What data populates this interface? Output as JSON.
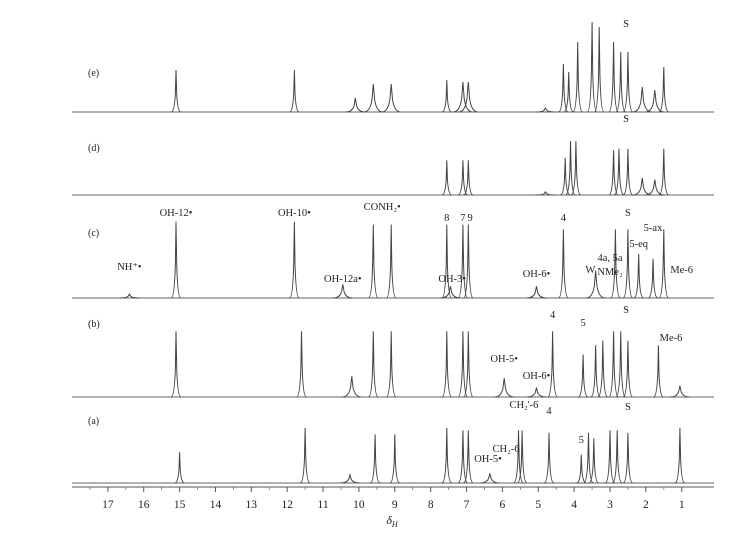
{
  "chart_data": {
    "type": "line",
    "title": "",
    "xlabel": "δH",
    "x_axis": {
      "label_main": "δ",
      "label_sub": "H",
      "reversed": true,
      "range": [
        18.0,
        0.1
      ],
      "ticks": [
        "17",
        "16",
        "15",
        "14",
        "13",
        "12",
        "11",
        "10",
        "9",
        "8",
        "7",
        "6",
        "5",
        "4",
        "3",
        "2",
        "1"
      ]
    },
    "series": [
      {
        "name": "(e)",
        "peaks": [
          {
            "x": 15.1,
            "h": 42
          },
          {
            "x": 11.8,
            "h": 42
          },
          {
            "x": 10.1,
            "h": 14
          },
          {
            "x": 9.6,
            "h": 28
          },
          {
            "x": 9.1,
            "h": 28
          },
          {
            "x": 7.55,
            "h": 32
          },
          {
            "x": 7.1,
            "h": 30
          },
          {
            "x": 6.95,
            "h": 30
          },
          {
            "x": 4.8,
            "h": 4
          },
          {
            "x": 4.3,
            "h": 48
          },
          {
            "x": 4.15,
            "h": 40
          },
          {
            "x": 3.9,
            "h": 70
          },
          {
            "x": 3.5,
            "h": 90
          },
          {
            "x": 3.3,
            "h": 85
          },
          {
            "x": 2.9,
            "h": 70
          },
          {
            "x": 2.7,
            "h": 60
          },
          {
            "x": 2.5,
            "h": 60
          },
          {
            "x": 2.1,
            "h": 25
          },
          {
            "x": 1.75,
            "h": 22
          },
          {
            "x": 1.5,
            "h": 45
          }
        ],
        "labels": [
          {
            "text": "S",
            "x": 2.55
          }
        ]
      },
      {
        "name": "(d)",
        "peaks": [
          {
            "x": 7.55,
            "h": 45
          },
          {
            "x": 7.1,
            "h": 45
          },
          {
            "x": 6.95,
            "h": 45
          },
          {
            "x": 4.8,
            "h": 4
          },
          {
            "x": 4.25,
            "h": 48
          },
          {
            "x": 4.1,
            "h": 70
          },
          {
            "x": 3.95,
            "h": 70
          },
          {
            "x": 2.9,
            "h": 58
          },
          {
            "x": 2.75,
            "h": 60
          },
          {
            "x": 2.5,
            "h": 60
          },
          {
            "x": 2.1,
            "h": 22
          },
          {
            "x": 1.75,
            "h": 20
          },
          {
            "x": 1.5,
            "h": 60
          }
        ],
        "labels": [
          {
            "text": "S",
            "x": 2.55
          }
        ]
      },
      {
        "name": "(c)",
        "peaks": [
          {
            "x": 16.4,
            "h": 4
          },
          {
            "x": 15.1,
            "h": 78
          },
          {
            "x": 11.8,
            "h": 78
          },
          {
            "x": 10.45,
            "h": 14
          },
          {
            "x": 9.6,
            "h": 75
          },
          {
            "x": 9.1,
            "h": 75
          },
          {
            "x": 7.55,
            "h": 75
          },
          {
            "x": 7.45,
            "h": 12
          },
          {
            "x": 7.1,
            "h": 75
          },
          {
            "x": 6.95,
            "h": 75
          },
          {
            "x": 5.05,
            "h": 12
          },
          {
            "x": 4.3,
            "h": 70
          },
          {
            "x": 3.4,
            "h": 28
          },
          {
            "x": 2.85,
            "h": 70
          },
          {
            "x": 2.5,
            "h": 70
          },
          {
            "x": 2.2,
            "h": 45
          },
          {
            "x": 1.8,
            "h": 40
          },
          {
            "x": 1.5,
            "h": 70
          }
        ],
        "labels": [
          {
            "text": "NH⁺•",
            "x": 16.4
          },
          {
            "text": "OH-12•",
            "x": 15.1
          },
          {
            "text": "OH-10•",
            "x": 11.8
          },
          {
            "text": "OH-12a•",
            "x": 10.45
          },
          {
            "text": "CONH₂•",
            "x": 9.35
          },
          {
            "text": "8",
            "x": 7.55
          },
          {
            "text": "7",
            "x": 7.1
          },
          {
            "text": "9",
            "x": 6.9
          },
          {
            "text": "OH-3•",
            "x": 7.4
          },
          {
            "text": "OH-6•",
            "x": 5.05
          },
          {
            "text": "4",
            "x": 4.3
          },
          {
            "text": "4a, 5a",
            "x": 3.0
          },
          {
            "text": "NMe₂",
            "x": 3.0
          },
          {
            "text": "W",
            "x": 3.55
          },
          {
            "text": "S",
            "x": 2.5
          },
          {
            "text": "5-ax",
            "x": 1.8
          },
          {
            "text": "5-eq",
            "x": 2.2
          },
          {
            "text": "Me-6",
            "x": 1.0
          }
        ]
      },
      {
        "name": "(b)",
        "peaks": [
          {
            "x": 15.1,
            "h": 70
          },
          {
            "x": 11.6,
            "h": 70
          },
          {
            "x": 10.2,
            "h": 22
          },
          {
            "x": 9.6,
            "h": 70
          },
          {
            "x": 9.1,
            "h": 70
          },
          {
            "x": 7.55,
            "h": 70
          },
          {
            "x": 7.1,
            "h": 70
          },
          {
            "x": 6.95,
            "h": 70
          },
          {
            "x": 5.95,
            "h": 20
          },
          {
            "x": 5.05,
            "h": 10
          },
          {
            "x": 4.6,
            "h": 70
          },
          {
            "x": 3.75,
            "h": 45
          },
          {
            "x": 3.4,
            "h": 55
          },
          {
            "x": 3.2,
            "h": 60
          },
          {
            "x": 2.9,
            "h": 70
          },
          {
            "x": 2.7,
            "h": 70
          },
          {
            "x": 2.5,
            "h": 60
          },
          {
            "x": 1.65,
            "h": 55
          },
          {
            "x": 1.05,
            "h": 12
          }
        ],
        "labels": [
          {
            "text": "4",
            "x": 4.6
          },
          {
            "text": "5",
            "x": 3.75
          },
          {
            "text": "S",
            "x": 2.55
          },
          {
            "text": "OH-5•",
            "x": 5.95
          },
          {
            "text": "OH-6•",
            "x": 5.05
          },
          {
            "text": "Me-6",
            "x": 1.3
          }
        ]
      },
      {
        "name": "(a)",
        "peaks": [
          {
            "x": 15.0,
            "h": 38
          },
          {
            "x": 11.5,
            "h": 68
          },
          {
            "x": 10.25,
            "h": 10
          },
          {
            "x": 9.55,
            "h": 60
          },
          {
            "x": 9.0,
            "h": 60
          },
          {
            "x": 7.55,
            "h": 68
          },
          {
            "x": 7.1,
            "h": 65
          },
          {
            "x": 6.95,
            "h": 65
          },
          {
            "x": 6.35,
            "h": 12
          },
          {
            "x": 5.55,
            "h": 65
          },
          {
            "x": 5.45,
            "h": 65
          },
          {
            "x": 4.7,
            "h": 62
          },
          {
            "x": 3.8,
            "h": 35
          },
          {
            "x": 3.6,
            "h": 62
          },
          {
            "x": 3.45,
            "h": 55
          },
          {
            "x": 3.0,
            "h": 65
          },
          {
            "x": 2.8,
            "h": 65
          },
          {
            "x": 2.5,
            "h": 62
          },
          {
            "x": 1.05,
            "h": 68
          }
        ],
        "labels": [
          {
            "text": "OH-5•",
            "x": 6.4
          },
          {
            "text": "CH₂-6",
            "x": 5.9
          },
          {
            "text": "CH₂'-6",
            "x": 5.4
          },
          {
            "text": "4",
            "x": 4.7
          },
          {
            "text": "5",
            "x": 3.8
          },
          {
            "text": "S",
            "x": 2.5
          }
        ]
      }
    ]
  }
}
